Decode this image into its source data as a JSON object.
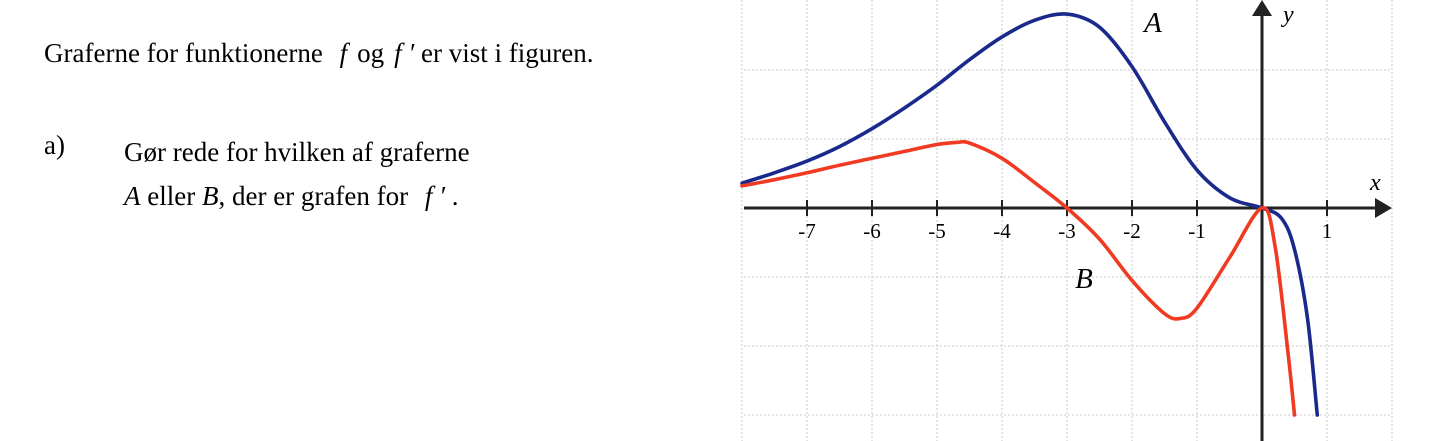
{
  "text": {
    "intro_before": "Graferne for funktionerne",
    "f": "f",
    "og": "og",
    "fprime": "f ′",
    "intro_after": "er vist i figuren.",
    "question_label": "a)",
    "question_line1": "Gør rede for hvilken af graferne",
    "A": "A",
    "eller": "eller",
    "B": "B",
    "question_line2_mid": ", der er grafen for",
    "period": "."
  },
  "chart_data": {
    "type": "line",
    "xlabel": "x",
    "ylabel": "y",
    "x_ticks": [
      "-7",
      "-6",
      "-5",
      "-4",
      "-3",
      "-2",
      "-1",
      "1"
    ],
    "xlim": [
      -8.1,
      2.0
    ],
    "ylim": [
      -3.3,
      2.9
    ],
    "grid": true,
    "series": [
      {
        "name": "A",
        "color": "#1a2a8c",
        "x": [
          -8.0,
          -7.5,
          -7.0,
          -6.5,
          -6.0,
          -5.5,
          -5.0,
          -4.5,
          -4.0,
          -3.5,
          -3.0,
          -2.5,
          -2.0,
          -1.5,
          -1.0,
          -0.5,
          0.0,
          0.3,
          0.5,
          0.7,
          0.85
        ],
        "y": [
          0.36,
          0.51,
          0.68,
          0.89,
          1.15,
          1.45,
          1.78,
          2.15,
          2.48,
          2.72,
          2.81,
          2.62,
          2.05,
          1.25,
          0.55,
          0.15,
          0.0,
          -0.15,
          -0.6,
          -1.6,
          -3.0
        ]
      },
      {
        "name": "B",
        "color": "#f03a22",
        "x": [
          -8.0,
          -7.5,
          -7.0,
          -6.5,
          -6.0,
          -5.5,
          -5.0,
          -4.7,
          -4.5,
          -4.0,
          -3.5,
          -3.0,
          -2.5,
          -2.0,
          -1.5,
          -1.25,
          -1.0,
          -0.5,
          0.0,
          0.2,
          0.4,
          0.5
        ],
        "y": [
          0.32,
          0.41,
          0.51,
          0.62,
          0.72,
          0.82,
          0.92,
          0.95,
          0.94,
          0.72,
          0.37,
          0.0,
          -0.45,
          -1.05,
          -1.53,
          -1.6,
          -1.45,
          -0.72,
          0.0,
          -0.55,
          -2.1,
          -3.0
        ]
      }
    ]
  }
}
